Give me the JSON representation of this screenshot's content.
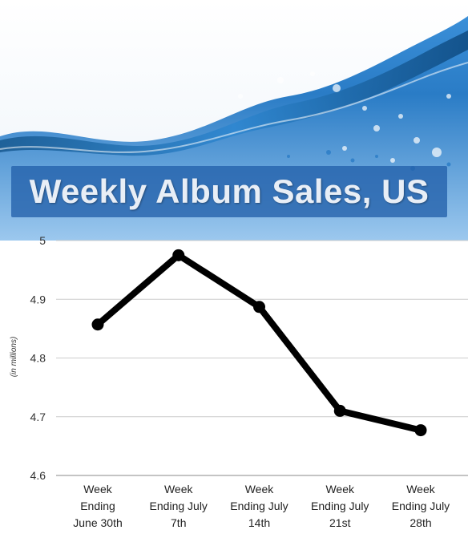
{
  "colors": {
    "line": "#000000",
    "gridline": "#cccccc",
    "title_bar": "#2260aa",
    "title_text": "#e8eef6",
    "water": "#1f78c8"
  },
  "chart_data": {
    "type": "line",
    "title": "Weekly Album Sales, US",
    "ylabel": "(in millions)",
    "xlabel": "",
    "categories": [
      [
        "Week",
        "Ending",
        "June 30th"
      ],
      [
        "Week",
        "Ending July",
        "7th"
      ],
      [
        "Week",
        "Ending July",
        "14th"
      ],
      [
        "Week",
        "Ending July",
        "21st"
      ],
      [
        "Week",
        "Ending July",
        "28th"
      ]
    ],
    "values": [
      4.857,
      4.975,
      4.887,
      4.71,
      4.677
    ],
    "ylim": [
      4.6,
      5.0
    ],
    "yticks": [
      "4.6",
      "4.7",
      "4.8",
      "4.9",
      "5"
    ],
    "grid": true,
    "legend": "none"
  }
}
